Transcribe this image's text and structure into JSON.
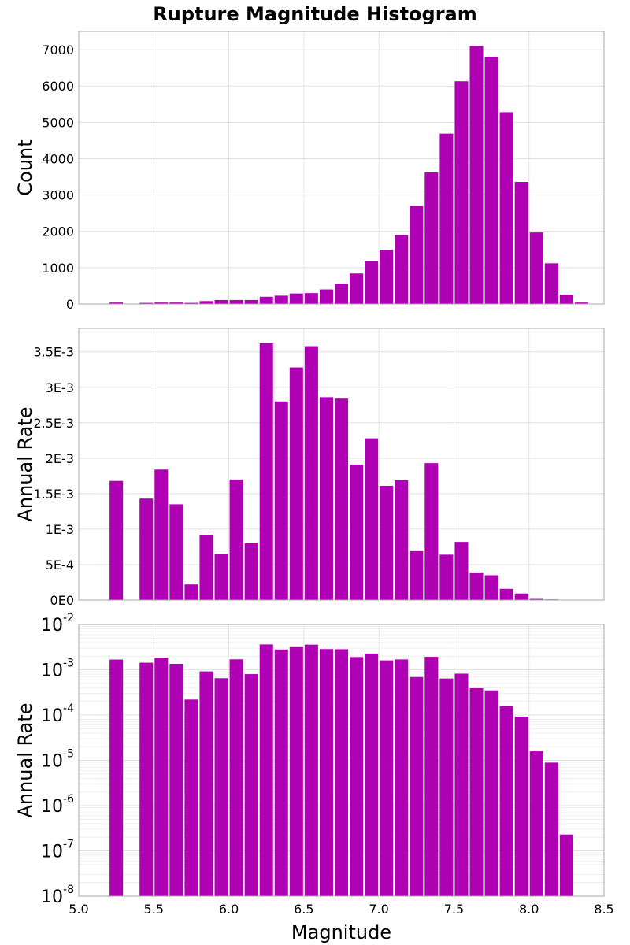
{
  "chart_data": {
    "type": "bar",
    "title": "Rupture Magnitude Histogram",
    "xlabel": "Magnitude",
    "xlim": [
      5.0,
      8.5
    ],
    "xticks": [
      "5.0",
      "5.5",
      "6.0",
      "6.5",
      "7.0",
      "7.5",
      "8.0",
      "8.5"
    ],
    "bar_color": "#b000b3",
    "bin_width": 0.1,
    "grid": true,
    "bin_centers": [
      5.25,
      5.35,
      5.45,
      5.55,
      5.65,
      5.75,
      5.85,
      5.95,
      6.05,
      6.15,
      6.25,
      6.35,
      6.45,
      6.55,
      6.65,
      6.75,
      6.85,
      6.95,
      7.05,
      7.15,
      7.25,
      7.35,
      7.45,
      7.55,
      7.65,
      7.75,
      7.85,
      7.95,
      8.05,
      8.15,
      8.25,
      8.35
    ],
    "panels": [
      {
        "name": "count",
        "ylabel": "Count",
        "scale": "linear",
        "ylim": [
          0,
          7500
        ],
        "yticks": [
          {
            "value": 0,
            "label": "0"
          },
          {
            "value": 1000,
            "label": "1000"
          },
          {
            "value": 2000,
            "label": "2000"
          },
          {
            "value": 3000,
            "label": "3000"
          },
          {
            "value": 4000,
            "label": "4000"
          },
          {
            "value": 5000,
            "label": "5000"
          },
          {
            "value": 6000,
            "label": "6000"
          },
          {
            "value": 7000,
            "label": "7000"
          }
        ],
        "values": [
          40,
          0,
          30,
          40,
          40,
          30,
          80,
          110,
          110,
          110,
          200,
          230,
          290,
          300,
          400,
          560,
          840,
          1170,
          1490,
          1900,
          2700,
          3620,
          4690,
          6130,
          7100,
          6800,
          5280,
          3360,
          1970,
          1120,
          260,
          40
        ]
      },
      {
        "name": "rate-linear",
        "ylabel": "Annual Rate",
        "scale": "linear",
        "ylim": [
          0,
          0.00383
        ],
        "yticks": [
          {
            "value": 0,
            "label": "0E0"
          },
          {
            "value": 0.0005,
            "label": "5E-4"
          },
          {
            "value": 0.001,
            "label": "1E-3"
          },
          {
            "value": 0.0015,
            "label": "1.5E-3"
          },
          {
            "value": 0.002,
            "label": "2E-3"
          },
          {
            "value": 0.0025,
            "label": "2.5E-3"
          },
          {
            "value": 0.003,
            "label": "3E-3"
          },
          {
            "value": 0.0035,
            "label": "3.5E-3"
          }
        ],
        "values": [
          0.00168,
          0,
          0.00143,
          0.00184,
          0.00135,
          0.00022,
          0.00092,
          0.00065,
          0.0017,
          0.0008,
          0.00362,
          0.0028,
          0.00328,
          0.00358,
          0.00286,
          0.00284,
          0.00191,
          0.00228,
          0.00161,
          0.00169,
          0.00069,
          0.00193,
          0.00064,
          0.00082,
          0.00039,
          0.00035,
          0.000158,
          9.2e-05,
          1.58e-05,
          8.9e-06,
          2.3e-07,
          1e-08
        ]
      },
      {
        "name": "rate-log",
        "ylabel": "Annual Rate",
        "scale": "log",
        "ylim": [
          1e-08,
          0.01
        ],
        "yticks": [
          {
            "value": 1e-08,
            "base": "10",
            "exp": "-8"
          },
          {
            "value": 1e-07,
            "base": "10",
            "exp": "-7"
          },
          {
            "value": 1e-06,
            "base": "10",
            "exp": "-6"
          },
          {
            "value": 1e-05,
            "base": "10",
            "exp": "-5"
          },
          {
            "value": 0.0001,
            "base": "10",
            "exp": "-4"
          },
          {
            "value": 0.001,
            "base": "10",
            "exp": "-3"
          },
          {
            "value": 0.01,
            "base": "10",
            "exp": "-2"
          }
        ],
        "values": [
          0.00168,
          0,
          0.00143,
          0.00184,
          0.00135,
          0.00022,
          0.00092,
          0.00065,
          0.0017,
          0.0008,
          0.00362,
          0.0028,
          0.00328,
          0.00358,
          0.00286,
          0.00284,
          0.00191,
          0.00228,
          0.00161,
          0.00169,
          0.00069,
          0.00193,
          0.00064,
          0.00082,
          0.00039,
          0.00035,
          0.000158,
          9.2e-05,
          1.58e-05,
          8.9e-06,
          2.3e-07,
          1e-08
        ]
      }
    ]
  }
}
